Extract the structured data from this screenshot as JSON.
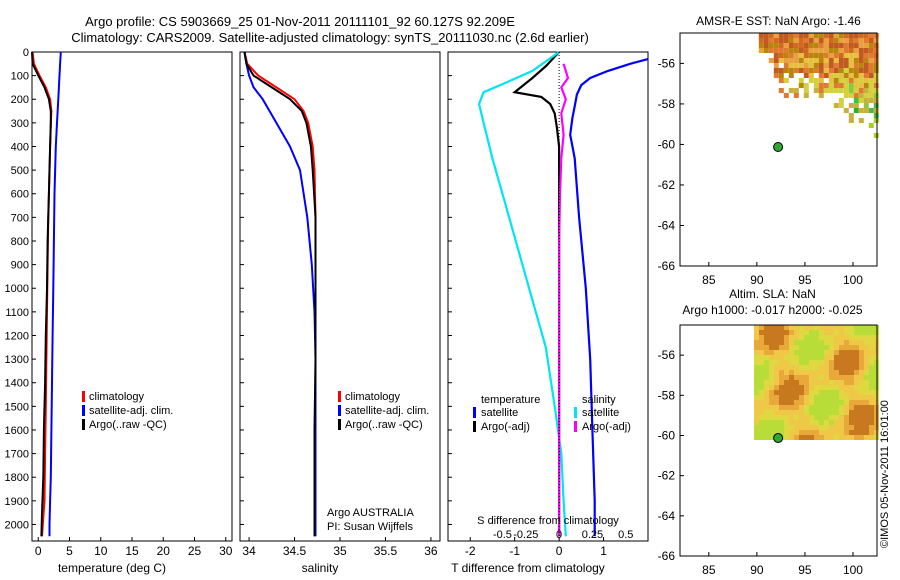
{
  "title_line1": "Argo profile: CS 5903669_25 01-Nov-2011 20111101_92 60.127S 92.209E",
  "title_line2": "Climatology: CARS2009. Satellite-adjusted climatology: synTS_20111030.nc (2.6d earlier)",
  "side_label": "©IMOS 05-Nov-2011 16:01:00",
  "colors": {
    "climatology": "#ff0000",
    "satellite": "#0000ff",
    "argo": "#000000",
    "sat_salinity": "#00e5ee",
    "argo_salinity": "#ff00ff"
  },
  "chart_data": [
    {
      "id": "temperature",
      "type": "line",
      "xlabel": "temperature (deg C)",
      "xlim": [
        -1,
        31
      ],
      "ylim": [
        2070,
        0
      ],
      "xticks": [
        0,
        5,
        10,
        15,
        20,
        25,
        30
      ],
      "xtick_labels": [
        "0",
        "5",
        "10",
        "15",
        "20",
        "25",
        "30"
      ],
      "yticks": [
        0,
        100,
        200,
        300,
        400,
        500,
        600,
        700,
        800,
        900,
        1000,
        1100,
        1200,
        1300,
        1400,
        1500,
        1600,
        1700,
        1800,
        1900,
        2000
      ],
      "ytick_labels": [
        "0",
        "100",
        "200",
        "300",
        "400",
        "500",
        "600",
        "700",
        "800",
        "900",
        "1000",
        "1100",
        "1200",
        "1300",
        "1400",
        "1500",
        "1600",
        "1700",
        "1800",
        "1900",
        "2000"
      ],
      "legend": [
        "climatology",
        "satellite-adj. clim.",
        "Argo(..raw -QC)"
      ],
      "series": [
        {
          "name": "climatology",
          "color": "#ff0000",
          "x": [
            -0.9,
            -0.7,
            0.2,
            1.2,
            1.9,
            2.1,
            2.0,
            1.8,
            1.6,
            1.5,
            1.4,
            1.3,
            1.2,
            1.1,
            1.0,
            0.8,
            0.6
          ],
          "y": [
            0,
            50,
            100,
            150,
            200,
            250,
            300,
            500,
            700,
            900,
            1100,
            1300,
            1500,
            1700,
            1900,
            1970,
            2050
          ]
        },
        {
          "name": "satellite-adj. clim.",
          "color": "#0000ff",
          "x": [
            3.6,
            3.5,
            3.4,
            3.2,
            3.0,
            2.8,
            2.6,
            2.5,
            2.4,
            2.3,
            2.2,
            2.1,
            2.0,
            1.9,
            1.8,
            1.8
          ],
          "y": [
            0,
            50,
            100,
            200,
            300,
            400,
            600,
            800,
            1000,
            1200,
            1400,
            1600,
            1800,
            1900,
            2000,
            2050
          ]
        },
        {
          "name": "Argo(..raw -QC)",
          "color": "#000000",
          "x": [
            -1.0,
            -0.9,
            0.0,
            1.0,
            1.7,
            2.0,
            2.0,
            1.9,
            1.7,
            1.5,
            1.4,
            1.2,
            1.1,
            0.9,
            0.8,
            0.6,
            0.5
          ],
          "y": [
            0,
            50,
            100,
            150,
            200,
            250,
            300,
            400,
            600,
            800,
            1000,
            1200,
            1400,
            1600,
            1800,
            1950,
            2050
          ]
        }
      ]
    },
    {
      "id": "salinity",
      "type": "line",
      "xlabel": "salinity",
      "xlim": [
        33.9,
        36.1
      ],
      "ylim": [
        2070,
        0
      ],
      "xticks": [
        34,
        34.5,
        35,
        35.5,
        36
      ],
      "xtick_labels": [
        "34",
        "34.5",
        "35",
        "35.5",
        "36"
      ],
      "legend": [
        "climatology",
        "satellite-adj. clim.",
        "Argo(..raw -QC)"
      ],
      "annotation": [
        "Argo AUSTRALIA",
        "PI: Susan Wijffels"
      ],
      "series": [
        {
          "name": "climatology",
          "color": "#ff0000",
          "x": [
            33.95,
            33.98,
            34.1,
            34.3,
            34.5,
            34.6,
            34.65,
            34.7,
            34.72,
            34.73,
            34.73,
            34.73,
            34.73,
            34.73,
            34.72
          ],
          "y": [
            0,
            50,
            100,
            150,
            200,
            250,
            300,
            400,
            500,
            700,
            1000,
            1300,
            1600,
            1900,
            2050
          ]
        },
        {
          "name": "satellite-adj. clim.",
          "color": "#0000ff",
          "x": [
            33.95,
            33.97,
            34.0,
            34.05,
            34.15,
            34.3,
            34.45,
            34.56,
            34.64,
            34.69,
            34.72,
            34.73,
            34.73,
            34.73
          ],
          "y": [
            0,
            50,
            100,
            150,
            200,
            300,
            400,
            500,
            700,
            900,
            1100,
            1300,
            1600,
            2050
          ]
        },
        {
          "name": "Argo(..raw -QC)",
          "color": "#000000",
          "x": [
            33.95,
            33.97,
            34.05,
            34.25,
            34.45,
            34.58,
            34.63,
            34.68,
            34.7,
            34.73,
            34.73,
            34.73,
            34.72,
            34.72,
            34.72
          ],
          "y": [
            0,
            50,
            100,
            150,
            200,
            250,
            300,
            400,
            500,
            700,
            1000,
            1300,
            1600,
            1900,
            2050
          ]
        }
      ]
    },
    {
      "id": "differences",
      "type": "line",
      "xlabel": "T difference from climatology",
      "top_xlabel": "S difference from climatology",
      "xlim": [
        -2.5,
        2.0
      ],
      "ylim": [
        2070,
        0
      ],
      "xticks": [
        -2,
        -1,
        0,
        1
      ],
      "xtick_labels": [
        "-2",
        "-1",
        "0",
        "1"
      ],
      "top_ticks": [
        -1.5,
        -0.75,
        0,
        0.75,
        1.5
      ],
      "top_tick_labels": [
        "-0.5",
        "-0.25",
        "0",
        "0.25",
        "0.5"
      ],
      "legend_left_title": "temperature",
      "legend_right_title": "salinity",
      "legend_left": [
        "satellite",
        "Argo(-adj)"
      ],
      "legend_right": [
        "satellite",
        "Argo(-adj)"
      ],
      "series": [
        {
          "name": "satellite T",
          "color": "#0000ff",
          "x": [
            2.0,
            1.6,
            1.1,
            0.7,
            0.5,
            0.4,
            0.35,
            0.3,
            0.25,
            0.35,
            0.45,
            0.6,
            0.7,
            0.75,
            0.8,
            0.8
          ],
          "y": [
            30,
            50,
            80,
            110,
            140,
            180,
            230,
            280,
            350,
            450,
            700,
            1000,
            1300,
            1600,
            1900,
            2050
          ]
        },
        {
          "name": "Argo T",
          "color": "#000000",
          "x": [
            0.0,
            -0.3,
            -0.6,
            -1.0,
            -0.4,
            -0.2,
            -0.1,
            -0.05,
            0.0,
            0.0,
            0.0,
            0.0,
            0.0,
            0.0
          ],
          "y": [
            0,
            60,
            110,
            170,
            190,
            220,
            260,
            320,
            400,
            600,
            900,
            1200,
            1500,
            2050
          ]
        },
        {
          "name": "satellite S",
          "color": "#00e5ee",
          "x": [
            0.0,
            -0.6,
            -1.2,
            -1.7,
            -1.8,
            -1.7,
            -1.5,
            -1.2,
            -0.9,
            -0.6,
            -0.3,
            -0.1,
            0.05,
            0.1,
            0.15
          ],
          "y": [
            0,
            80,
            130,
            170,
            220,
            300,
            450,
            650,
            850,
            1050,
            1250,
            1500,
            1700,
            1900,
            2050
          ]
        },
        {
          "name": "Argo S",
          "color": "#ff00ff",
          "x": [
            0.1,
            0.2,
            0.05,
            0.15,
            0.05,
            0.1,
            0.05,
            0.02,
            0.0,
            0.0,
            0.0,
            0.0
          ],
          "y": [
            50,
            110,
            150,
            200,
            260,
            350,
            450,
            600,
            800,
            1100,
            1500,
            2050
          ]
        }
      ]
    },
    {
      "id": "sst-map",
      "type": "heatmap",
      "title": "AMSR-E SST: NaN Argo: -1.46",
      "xlim": [
        82,
        102.5
      ],
      "ylim": [
        -66,
        -54.5
      ],
      "xticks": [
        85,
        90,
        95,
        100
      ],
      "xtick_labels": [
        "85",
        "90",
        "95",
        "100"
      ],
      "yticks": [
        -56,
        -58,
        -60,
        -62,
        -64,
        -66
      ],
      "ytick_labels": [
        "-56",
        "-58",
        "-60",
        "-62",
        "-64",
        "-66"
      ],
      "marker": {
        "lon": 92.209,
        "lat": -60.127
      }
    },
    {
      "id": "sla-map",
      "type": "heatmap",
      "title_line1": "Altim. SLA: NaN",
      "title_line2": "Argo h1000: -0.017 h2000: -0.025",
      "xlim": [
        82,
        102.5
      ],
      "ylim": [
        -66,
        -54.5
      ],
      "xticks": [
        85,
        90,
        95,
        100
      ],
      "xtick_labels": [
        "85",
        "90",
        "95",
        "100"
      ],
      "yticks": [
        -56,
        -58,
        -60,
        -62,
        -64,
        -66
      ],
      "ytick_labels": [
        "-56",
        "-58",
        "-60",
        "-62",
        "-64",
        "-66"
      ],
      "marker": {
        "lon": 92.209,
        "lat": -60.127
      }
    }
  ]
}
